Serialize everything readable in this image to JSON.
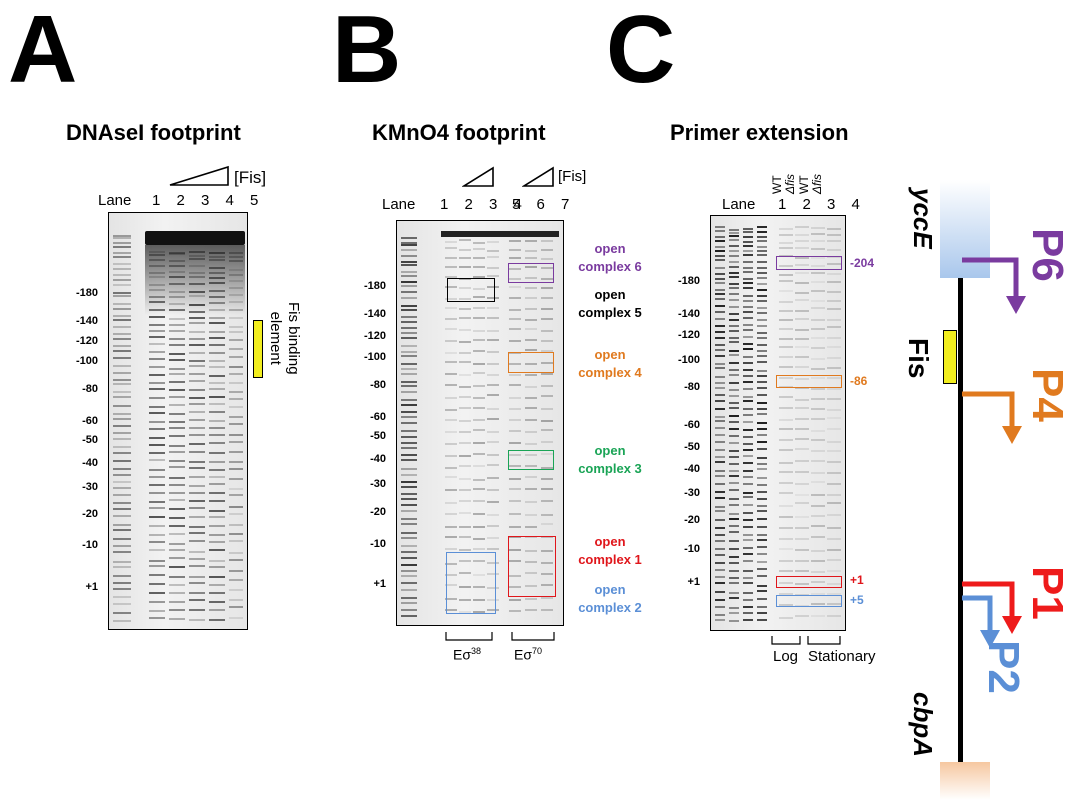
{
  "panels": {
    "a": {
      "letter": "A",
      "title": "DNAseI footprint",
      "lane_label": "Lane",
      "lane_numbers": "1 2 3 4 5",
      "fis_label": "[Fis]",
      "fis_note_line1": "Fis binding",
      "fis_note_line2": "element",
      "ticks": [
        "-180",
        "-140",
        "-120",
        "-100",
        "-80",
        "-60",
        "-50",
        "-40",
        "-30",
        "-20",
        "-10",
        "+1"
      ]
    },
    "b": {
      "letter": "B",
      "title": "KMnO4 footprint",
      "lane_label": "Lane",
      "lane_numbers_1": "1 2 3 4",
      "lane_numbers_2": "5 6 7",
      "fis_label": "[Fis]",
      "ticks": [
        "-180",
        "-140",
        "-120",
        "-100",
        "-80",
        "-60",
        "-50",
        "-40",
        "-30",
        "-20",
        "-10",
        "+1"
      ],
      "complexes": [
        {
          "line1": "open",
          "line2": "complex 6",
          "color": "#7a3b9f"
        },
        {
          "line1": "open",
          "line2": "complex 5",
          "color": "#000000"
        },
        {
          "line1": "open",
          "line2": "complex 4",
          "color": "#e07a1f"
        },
        {
          "line1": "open",
          "line2": "complex 3",
          "color": "#1aa456"
        },
        {
          "line1": "open",
          "line2": "complex 1",
          "color": "#e0161b"
        },
        {
          "line1": "open",
          "line2": "complex 2",
          "color": "#5b8fd6"
        }
      ],
      "e38": "Eσ",
      "e38_sup": "38",
      "e70": "Eσ",
      "e70_sup": "70"
    },
    "c": {
      "letter": "C",
      "title": "Primer extension",
      "lane_label": "Lane",
      "lane_numbers": "1 2 3 4",
      "strains": [
        "WT",
        "Δfis",
        "WT",
        "Δfis"
      ],
      "ticks": [
        "-180",
        "-140",
        "-120",
        "-100",
        "-80",
        "-60",
        "-50",
        "-40",
        "-30",
        "-20",
        "-10",
        "+1"
      ],
      "markers": [
        {
          "label": "-204",
          "color": "#7a3b9f"
        },
        {
          "label": "-86",
          "color": "#e07a1f"
        },
        {
          "label": "+1",
          "color": "#e0161b"
        },
        {
          "label": "+5",
          "color": "#5b8fd6"
        }
      ],
      "log": "Log",
      "stationary": "Stationary"
    }
  },
  "map": {
    "top_gene": "yccE",
    "bottom_gene": "cbpA",
    "fis": "Fis",
    "promoters": [
      {
        "label": "P6",
        "color": "#7a3b9f"
      },
      {
        "label": "P4",
        "color": "#e07a1f"
      },
      {
        "label": "P1",
        "color": "#ee1b1b"
      },
      {
        "label": "P2",
        "color": "#5b8fd6"
      }
    ],
    "colors": {
      "fis_box": "#f2ee1f",
      "top_gene": "#a9c7ec",
      "bottom_gene": "#f6c7a0"
    }
  }
}
